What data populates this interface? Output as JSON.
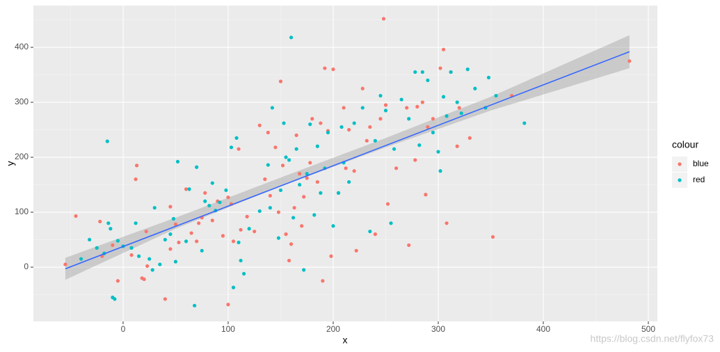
{
  "chart_data": {
    "type": "scatter",
    "x_label": "x",
    "y_label": "y",
    "legend_title": "colour",
    "legend": "right",
    "xlim": [
      -85.4,
      508.6
    ],
    "ylim": [
      -98.7,
      476
    ],
    "xticks": [
      0,
      100,
      200,
      300,
      400,
      500
    ],
    "yticks": [
      0,
      100,
      200,
      300,
      400
    ],
    "grid": true,
    "series": [
      {
        "name": "blue",
        "color": "#f8766d",
        "x": [
          -55,
          -45,
          -22,
          -20,
          -5,
          -10,
          8,
          13,
          12,
          18,
          20,
          22,
          23,
          40,
          45,
          45,
          50,
          53,
          60,
          65,
          70,
          72,
          75,
          78,
          85,
          90,
          95,
          100,
          100,
          103,
          105,
          110,
          112,
          118,
          125,
          130,
          135,
          138,
          140,
          145,
          148,
          150,
          152,
          155,
          158,
          160,
          163,
          165,
          168,
          170,
          172,
          175,
          178,
          180,
          185,
          188,
          190,
          192,
          195,
          198,
          200,
          205,
          210,
          212,
          215,
          220,
          222,
          228,
          232,
          235,
          240,
          245,
          248,
          250,
          252,
          260,
          270,
          272,
          278,
          280,
          285,
          288,
          290,
          295,
          302,
          305,
          308,
          312,
          318,
          320,
          330,
          352,
          370,
          482
        ],
        "values": [
          5,
          93,
          83,
          20,
          -25,
          40,
          22,
          185,
          160,
          -20,
          -22,
          65,
          2,
          -58,
          110,
          33,
          78,
          45,
          142,
          62,
          47,
          80,
          90,
          135,
          85,
          120,
          57,
          -68,
          127,
          115,
          47,
          215,
          68,
          92,
          65,
          258,
          160,
          245,
          130,
          218,
          100,
          338,
          185,
          60,
          12,
          42,
          108,
          240,
          170,
          75,
          128,
          162,
          190,
          270,
          155,
          262,
          -25,
          362,
          248,
          20,
          360,
          135,
          290,
          180,
          250,
          175,
          30,
          325,
          230,
          255,
          60,
          270,
          452,
          295,
          115,
          180,
          290,
          40,
          195,
          292,
          300,
          132,
          255,
          270,
          362,
          396,
          80,
          355,
          220,
          290,
          235,
          55,
          312,
          375
        ]
      },
      {
        "name": "red",
        "color": "#00bfc4",
        "x": [
          -40,
          -32,
          -25,
          -18,
          -15,
          -14,
          -12,
          -10,
          -8,
          -5,
          0,
          8,
          12,
          15,
          25,
          28,
          30,
          35,
          40,
          45,
          48,
          50,
          52,
          60,
          63,
          68,
          70,
          75,
          78,
          82,
          85,
          88,
          92,
          98,
          103,
          105,
          108,
          110,
          112,
          115,
          120,
          130,
          138,
          140,
          142,
          148,
          150,
          153,
          155,
          158,
          160,
          162,
          165,
          168,
          172,
          175,
          178,
          182,
          185,
          188,
          192,
          195,
          200,
          205,
          208,
          210,
          215,
          220,
          228,
          235,
          240,
          245,
          250,
          255,
          258,
          265,
          272,
          278,
          282,
          285,
          290,
          295,
          300,
          302,
          305,
          308,
          312,
          318,
          322,
          328,
          335,
          345,
          348,
          355,
          382
        ],
        "values": [
          15,
          50,
          35,
          25,
          229,
          80,
          70,
          -55,
          -58,
          48,
          38,
          35,
          80,
          20,
          15,
          -5,
          108,
          5,
          50,
          60,
          88,
          10,
          192,
          47,
          142,
          -70,
          182,
          30,
          120,
          112,
          153,
          103,
          118,
          140,
          218,
          -37,
          235,
          45,
          12,
          -12,
          70,
          102,
          186,
          108,
          290,
          53,
          140,
          262,
          200,
          195,
          418,
          90,
          215,
          150,
          -5,
          170,
          260,
          95,
          220,
          135,
          180,
          245,
          75,
          135,
          255,
          190,
          155,
          262,
          290,
          65,
          230,
          312,
          285,
          80,
          215,
          305,
          270,
          355,
          222,
          355,
          340,
          245,
          210,
          175,
          310,
          275,
          355,
          300,
          280,
          360,
          325,
          290,
          345,
          312,
          262
        ]
      }
    ],
    "fit": {
      "color": "#3366ff",
      "x": [
        -55,
        482
      ],
      "values": [
        -3,
        392
      ]
    },
    "ci": {
      "color": "#999999",
      "x": [
        -55,
        50,
        150,
        250,
        350,
        482
      ],
      "lower": [
        -23,
        70,
        147,
        218,
        285,
        362
      ],
      "upper": [
        17,
        90,
        163,
        235,
        310,
        422
      ]
    },
    "watermark": "https://blog.csdn.net/flyfox73"
  }
}
